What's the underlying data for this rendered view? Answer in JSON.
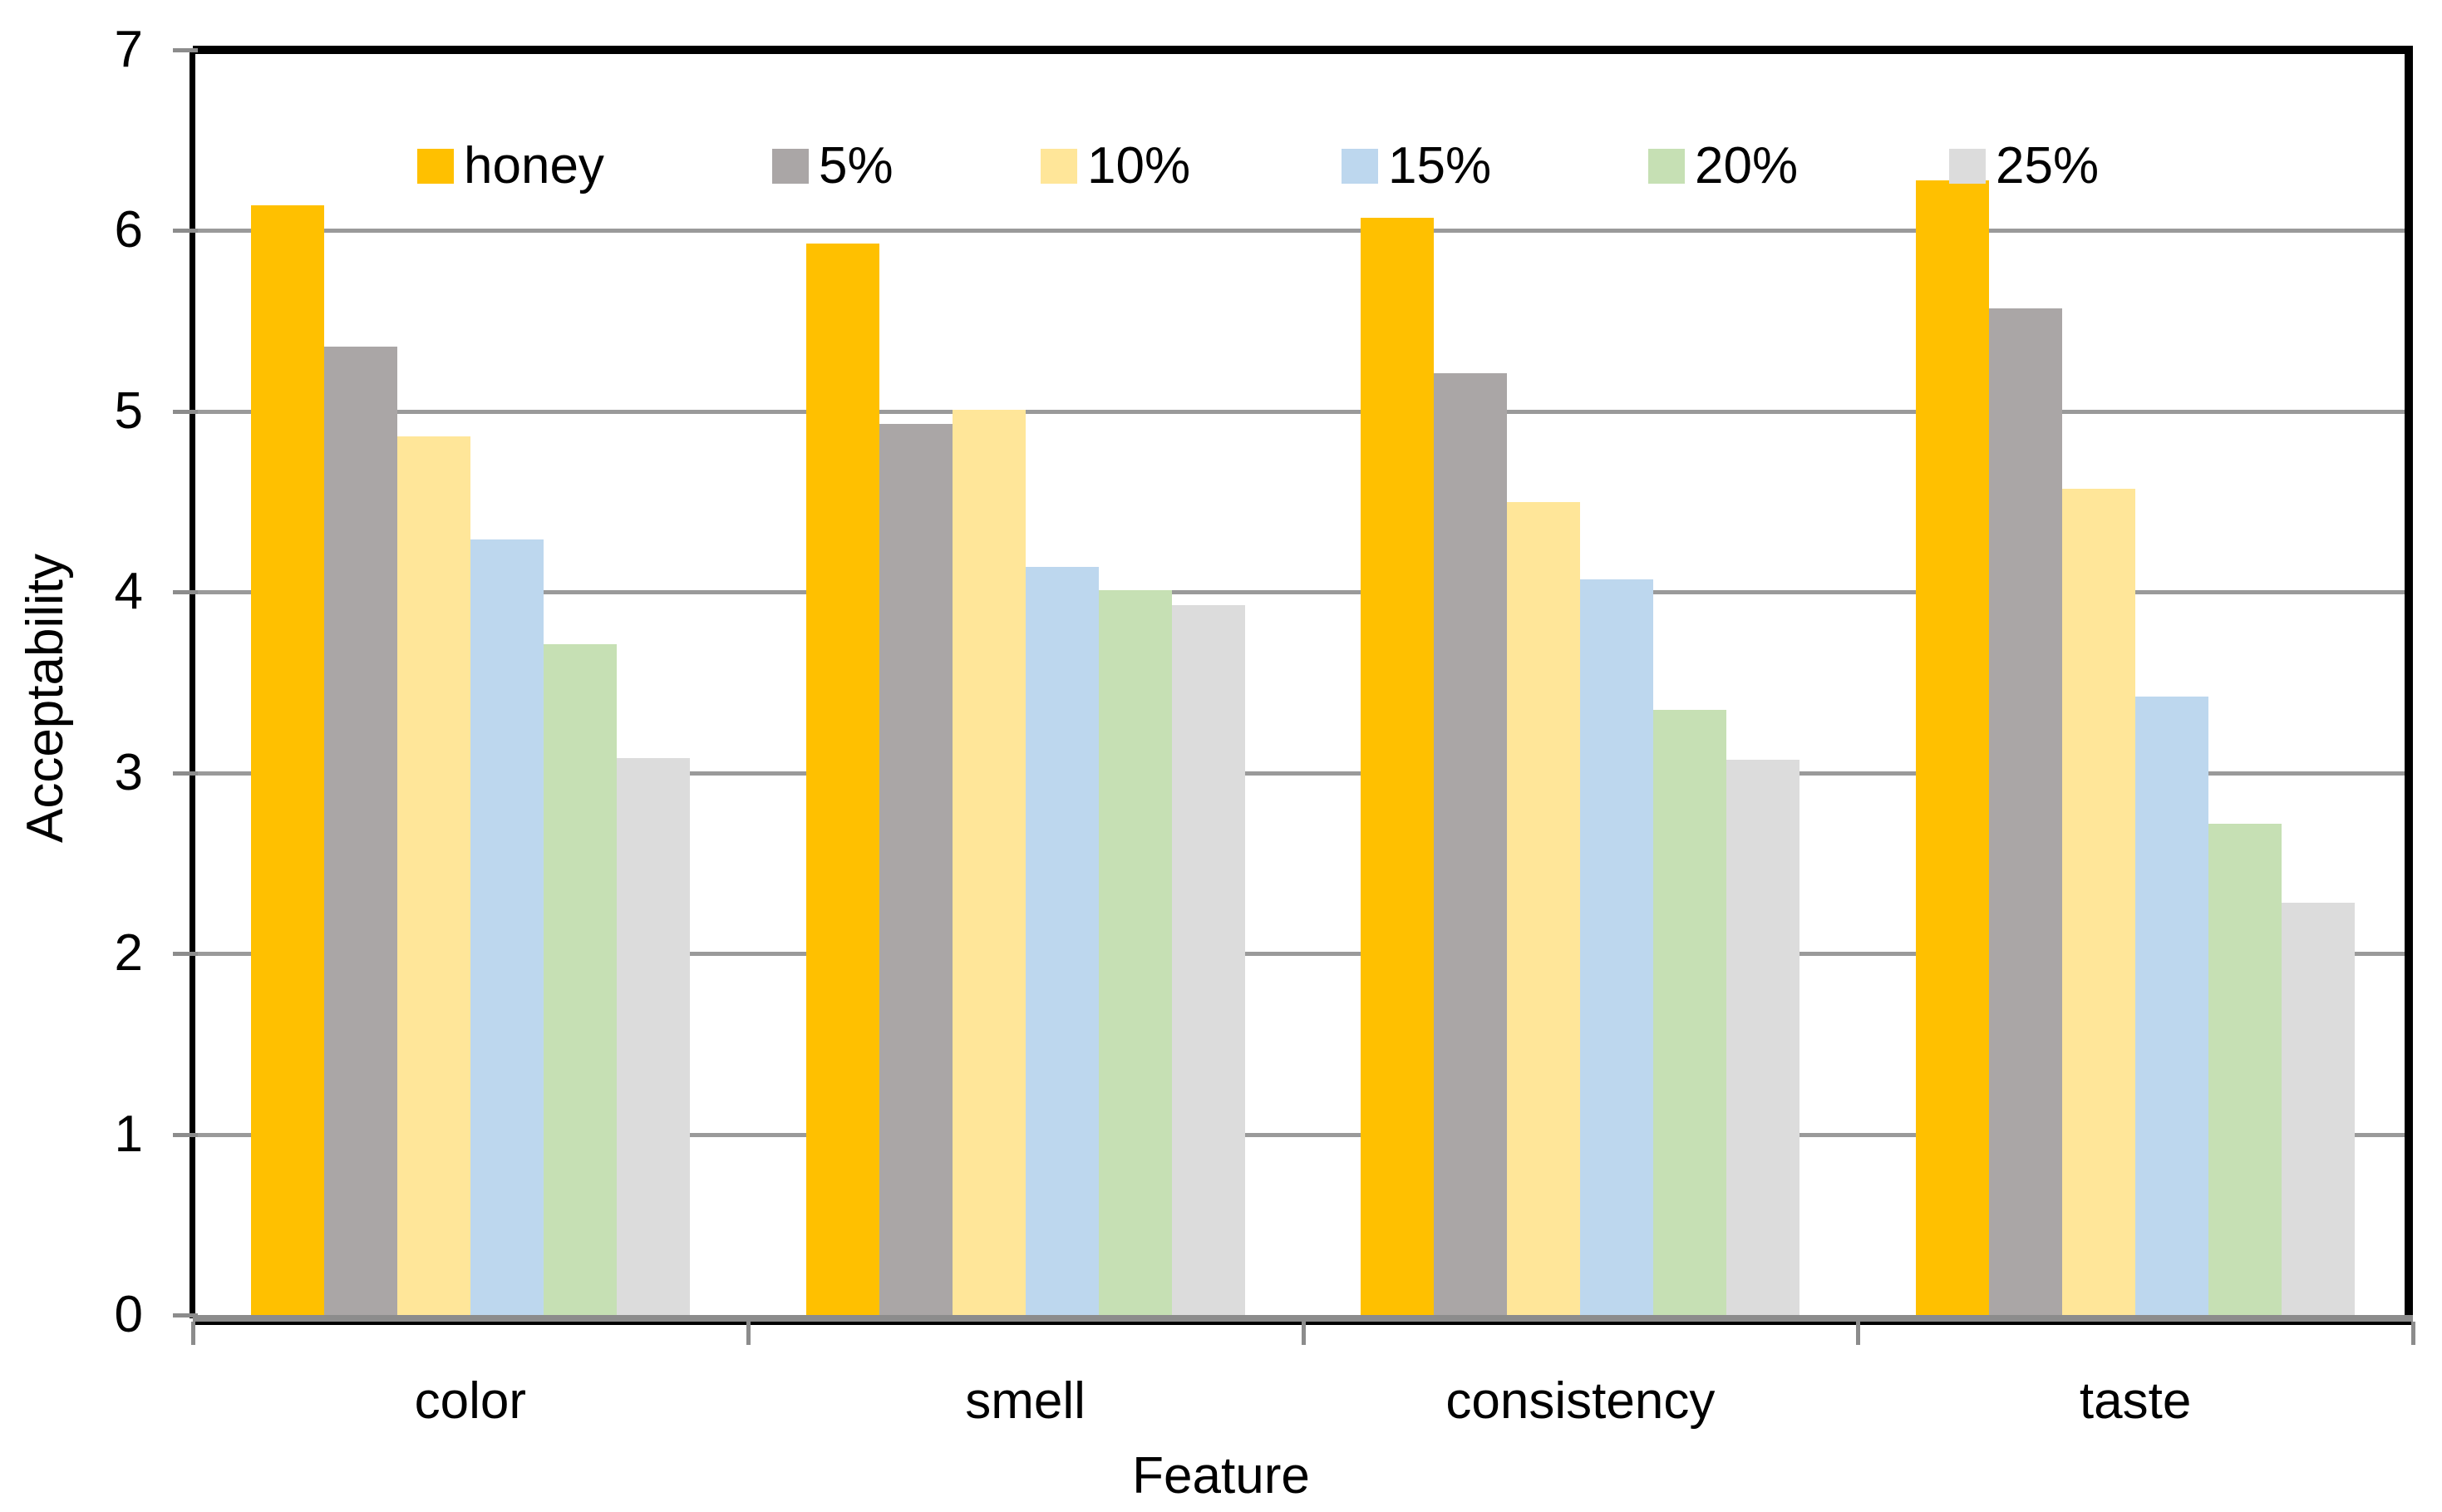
{
  "chart_data": {
    "type": "bar",
    "title": "",
    "xlabel": "Feature",
    "ylabel": "Acceptability",
    "categories": [
      "color",
      "smell",
      "consistency",
      "taste"
    ],
    "series": [
      {
        "name": "honey",
        "color": "#FFC000",
        "values": [
          6.14,
          5.93,
          6.07,
          6.28
        ]
      },
      {
        "name": "5%",
        "color": "#AAA6A6",
        "values": [
          5.36,
          4.93,
          5.21,
          5.57
        ]
      },
      {
        "name": "10%",
        "color": "#FFE699",
        "values": [
          4.86,
          5.01,
          4.5,
          4.57
        ]
      },
      {
        "name": "15%",
        "color": "#BDD7EE",
        "values": [
          4.29,
          4.14,
          4.07,
          3.42
        ]
      },
      {
        "name": "20%",
        "color": "#C6E0B4",
        "values": [
          3.71,
          4.01,
          3.35,
          2.72
        ]
      },
      {
        "name": "25%",
        "color": "#DCDCDC",
        "values": [
          3.08,
          3.93,
          3.07,
          2.28
        ]
      }
    ],
    "ylim": [
      0,
      7
    ],
    "yticks": [
      0,
      1,
      2,
      3,
      4,
      5,
      6,
      7
    ],
    "grid": true,
    "legend_position": "top-inside",
    "colors": {
      "gridline": "#9a9a9a",
      "axis": "#8c8c8c",
      "plot_border": "#000000",
      "text": "#000000",
      "background": "#ffffff"
    }
  }
}
